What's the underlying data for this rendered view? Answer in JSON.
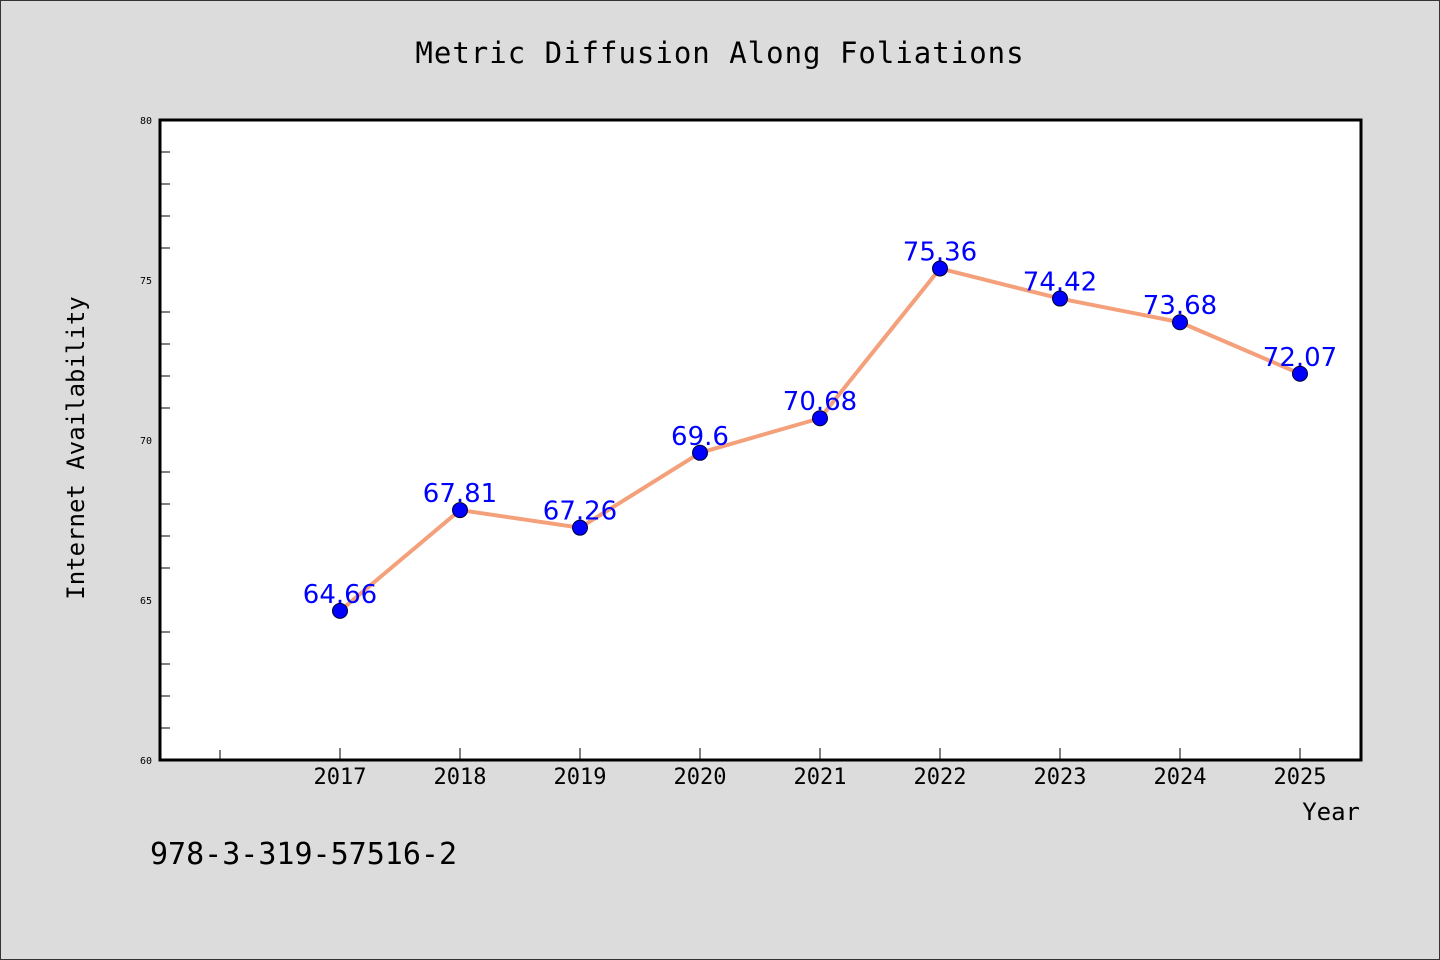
{
  "chart_data": {
    "type": "line",
    "title": "Metric Diffusion Along Foliations",
    "xlabel": "Year",
    "ylabel": "Internet Availability",
    "categories": [
      "2017",
      "2018",
      "2019",
      "2020",
      "2021",
      "2022",
      "2023",
      "2024",
      "2025"
    ],
    "series": [
      {
        "values": [
          64.66,
          67.81,
          67.26,
          69.6,
          70.68,
          75.36,
          74.42,
          73.68,
          72.07
        ],
        "labels": [
          "64.66",
          "67.81",
          "67.26",
          "69.6",
          "70.68",
          "75.36",
          "74.42",
          "73.68",
          "72.07"
        ],
        "line_color": "#f4a07a",
        "marker_color": "#0000ff"
      }
    ],
    "ylim": [
      60,
      80
    ],
    "yticks": [
      "60",
      "65",
      "70",
      "75",
      "80"
    ],
    "grid": false,
    "legend": "none",
    "data_label_color": "#0000ff"
  },
  "footer": {
    "isbn": "978-3-319-57516-2"
  },
  "colors": {
    "background": "#dcdcdc",
    "plot_background": "#ffffff"
  }
}
